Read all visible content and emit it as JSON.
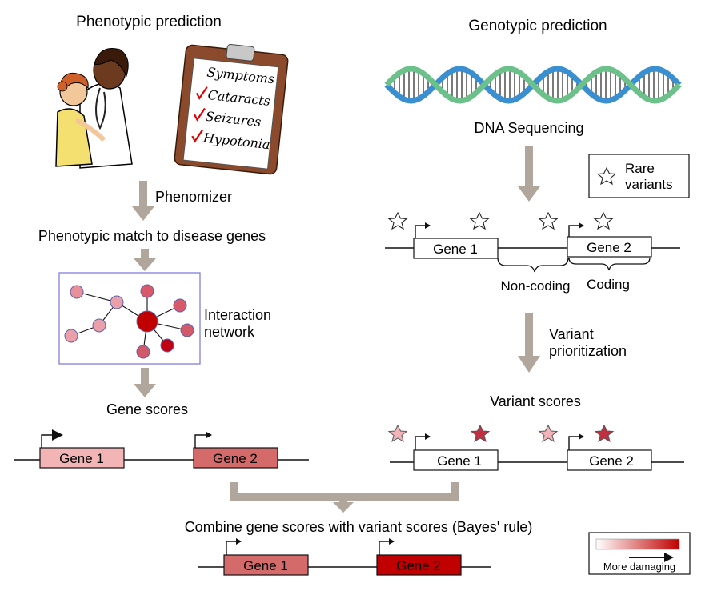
{
  "left": {
    "title": "Phenotypic prediction",
    "clipboard": {
      "heading": "Symptoms",
      "items": [
        "Cataracts",
        "Seizures",
        "Hypotonia"
      ]
    },
    "step1_label": "Phenomizer",
    "match_label": "Phenotypic match to disease genes",
    "network_label_line1": "Interaction",
    "network_label_line2": "network",
    "gene_scores_label": "Gene scores",
    "genes": [
      "Gene 1",
      "Gene 2"
    ]
  },
  "right": {
    "title": "Genotypic prediction",
    "dna_label": "DNA Sequencing",
    "legend_line1": "Rare",
    "legend_line2": "variants",
    "genes": [
      "Gene 1",
      "Gene 2"
    ],
    "noncoding_label": "Non-coding",
    "coding_label": "Coding",
    "step_label_line1": "Variant",
    "step_label_line2": "prioritization",
    "variant_scores_label": "Variant scores",
    "scored_genes": [
      "Gene 1",
      "Gene 2"
    ]
  },
  "bottom": {
    "combine_label": "Combine gene scores with variant scores (Bayes' rule)",
    "genes": [
      "Gene 1",
      "Gene 2"
    ],
    "scale_label": "More damaging"
  },
  "colors": {
    "arrow": "#b1a69b",
    "light_pink": "#f2b4b4",
    "mid_red": "#d46a6a",
    "dark_red": "#c00000",
    "network_border": "#8080e0",
    "dna_blue": "#3a8fd0",
    "dna_green": "#6cc08a"
  }
}
